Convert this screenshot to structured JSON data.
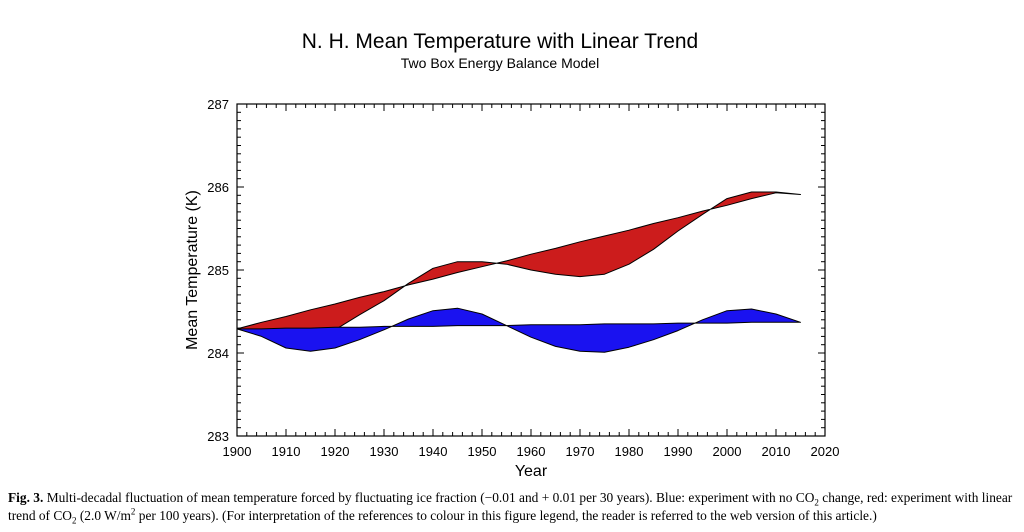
{
  "chart_data": {
    "type": "area",
    "title": "N. H. Mean Temperature with Linear Trend",
    "subtitle": "Two Box Energy Balance Model",
    "xlabel": "Year",
    "ylabel": "Mean Temperature (K)",
    "xlim": [
      1900,
      2020
    ],
    "ylim": [
      283,
      287
    ],
    "xticks": [
      "1900",
      "1910",
      "1920",
      "1930",
      "1940",
      "1950",
      "1960",
      "1970",
      "1980",
      "1990",
      "2000",
      "2010",
      "2020"
    ],
    "yticks": [
      "283",
      "284",
      "285",
      "286",
      "287"
    ],
    "grid": false,
    "legend": "none",
    "x": [
      1900,
      1905,
      1910,
      1915,
      1920,
      1925,
      1930,
      1935,
      1940,
      1945,
      1950,
      1955,
      1960,
      1965,
      1970,
      1975,
      1980,
      1985,
      1990,
      1995,
      2000,
      2005,
      2010,
      2015
    ],
    "series": [
      {
        "color": "#cc1c1c",
        "values": [
          284.29,
          284.24,
          284.17,
          284.16,
          284.28,
          284.46,
          284.63,
          284.84,
          285.02,
          285.1,
          285.1,
          285.07,
          285.0,
          284.95,
          284.92,
          284.95,
          285.07,
          285.25,
          285.47,
          285.67,
          285.86,
          285.94,
          285.94,
          285.91
        ],
        "trend": [
          284.29,
          284.37,
          284.44,
          284.52,
          284.59,
          284.67,
          284.74,
          284.82,
          284.89,
          284.97,
          285.04,
          285.11,
          285.19,
          285.26,
          285.34,
          285.41,
          285.48,
          285.56,
          285.63,
          285.71,
          285.78,
          285.86,
          285.93,
          285.91
        ]
      },
      {
        "color": "#1a12f0",
        "values": [
          284.29,
          284.2,
          284.06,
          284.02,
          284.06,
          284.16,
          284.28,
          284.41,
          284.51,
          284.54,
          284.47,
          284.33,
          284.19,
          284.08,
          284.02,
          284.01,
          284.07,
          284.16,
          284.27,
          284.4,
          284.51,
          284.53,
          284.47,
          284.37
        ],
        "trend": [
          284.29,
          284.29,
          284.3,
          284.3,
          284.31,
          284.31,
          284.32,
          284.32,
          284.32,
          284.33,
          284.33,
          284.33,
          284.34,
          284.34,
          284.34,
          284.35,
          284.35,
          284.35,
          284.36,
          284.36,
          284.36,
          284.37,
          284.37,
          284.37
        ]
      }
    ]
  },
  "caption": {
    "fig_number": "Fig. 3.",
    "segments": [
      "Multi-decadal fluctuation of mean temperature forced by fluctuating ice fraction (−0.01 and + 0.01 per 30 years). Blue: experiment with no CO",
      "2",
      " change, red: experiment with linear trend of CO",
      "2",
      " (2.0 W/m",
      "2",
      " per 100 years). (For interpretation of the references to colour in this figure legend, the reader is referred to the web version of this article.)"
    ]
  }
}
